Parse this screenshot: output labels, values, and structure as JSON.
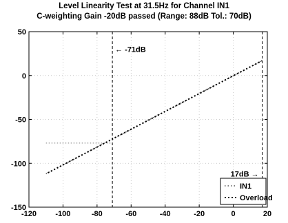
{
  "chart_data": {
    "type": "line",
    "title": "Level Linearity Test at 31.5Hz for Channel IN1",
    "subtitle": "C-weighting Gain -20dB passed (Range: 88dB Tol.: 70dB)",
    "xlim": [
      -120,
      20
    ],
    "ylim": [
      -150,
      50
    ],
    "xticks": [
      -120,
      -100,
      -80,
      -60,
      -40,
      -20,
      0,
      20
    ],
    "yticks": [
      -150,
      -100,
      -50,
      0,
      50
    ],
    "grid": true,
    "series": [
      {
        "name": "IN1",
        "style": "dotted",
        "x": [
          -110,
          17
        ],
        "y": [
          -112,
          17
        ]
      },
      {
        "name": "Overload",
        "style": "dashed",
        "x": [
          -110,
          17
        ],
        "y": [
          -112,
          17
        ]
      }
    ],
    "reference_hline": {
      "y": -77,
      "x_from": -110,
      "x_to": -71
    },
    "vlines": [
      {
        "x": -71,
        "label": "← -71dB",
        "label_side": "right",
        "label_y": 30
      },
      {
        "x": 17,
        "label": "17dB →",
        "label_side": "left",
        "label_y": -112
      }
    ],
    "legend_position": "bottom-right"
  }
}
